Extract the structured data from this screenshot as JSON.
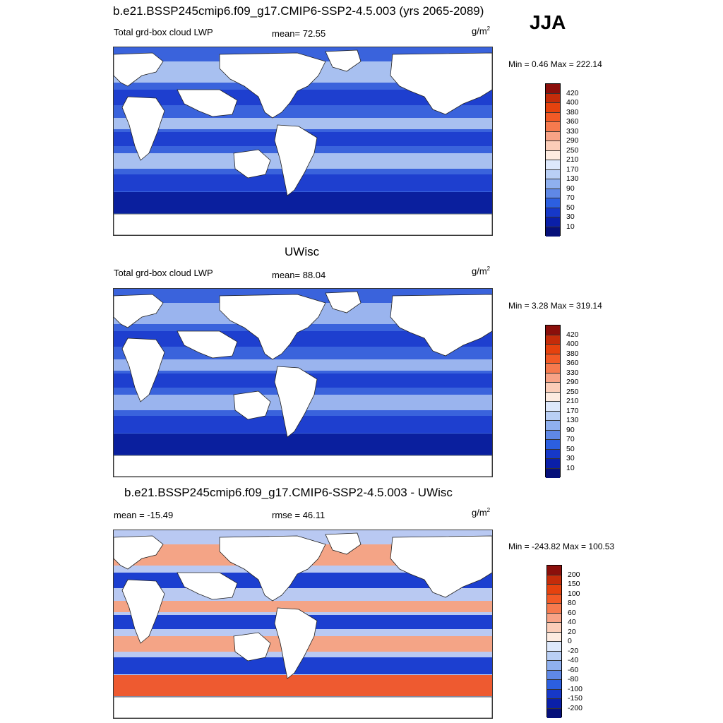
{
  "header": {
    "title": "b.e21.BSSP245cmip6.f09_g17.CMIP6-SSP2-4.5.003 (yrs 2065-2089)",
    "season": "JJA"
  },
  "panels": [
    {
      "id": "model",
      "title": "",
      "left_label": "Total grd-box cloud LWP",
      "center_label": "mean=  72.55",
      "units": "g/m",
      "units_sup": "2",
      "minmax": "Min =   0.46 Max = 222.14",
      "colors": {
        "ocean_base": "#3a63dc",
        "band_light": "#a8c0f0",
        "band_dark": "#1e3fcf",
        "deep": "#0a1f9e"
      }
    },
    {
      "id": "obs",
      "title": "UWisc",
      "left_label": "Total grd-box cloud LWP",
      "center_label": "mean=  88.04",
      "units": "g/m",
      "units_sup": "2",
      "minmax": "Min =   3.28 Max = 319.14",
      "colors": {
        "ocean_base": "#3a63dc",
        "band_light": "#9ab4ee",
        "band_dark": "#1e3fcf",
        "deep": "#0a1f9e"
      }
    },
    {
      "id": "diff",
      "title": "b.e21.BSSP245cmip6.f09_g17.CMIP6-SSP2-4.5.003 - UWisc",
      "left_label": "mean = -15.49",
      "center_label": "rmse =  46.11",
      "units": "g/m",
      "units_sup": "2",
      "minmax": "Min = -243.82 Max = 100.53",
      "colors": {
        "ocean_base": "#b9c9f2",
        "band_light": "#f4a486",
        "band_dark": "#1c3fd0",
        "deep": "#ee5a30"
      }
    }
  ],
  "colorbar_abs": {
    "labels": [
      "420",
      "400",
      "380",
      "360",
      "330",
      "290",
      "250",
      "210",
      "170",
      "130",
      "90",
      "70",
      "50",
      "30",
      "10"
    ],
    "colors": [
      "#8b0f0b",
      "#c42c0a",
      "#e5420e",
      "#f25a26",
      "#f67a4e",
      "#f8a386",
      "#fbcdb8",
      "#fdebe0",
      "#dde8fb",
      "#b9cff5",
      "#8fb0ef",
      "#5f88e6",
      "#2c5fe0",
      "#1638c8",
      "#0a1fa8",
      "#06107a"
    ]
  },
  "colorbar_diff": {
    "labels": [
      "200",
      "150",
      "100",
      "80",
      "60",
      "40",
      "20",
      "0",
      "-20",
      "-40",
      "-60",
      "-80",
      "-100",
      "-150",
      "-200"
    ],
    "colors": [
      "#8b0f0b",
      "#c42c0a",
      "#e5420e",
      "#f25a26",
      "#f67a4e",
      "#f8a386",
      "#fbcdb8",
      "#fdebe0",
      "#dde8fb",
      "#b9cff5",
      "#8fb0ef",
      "#5f88e6",
      "#2c5fe0",
      "#1638c8",
      "#0a1fa8",
      "#06107a"
    ]
  }
}
